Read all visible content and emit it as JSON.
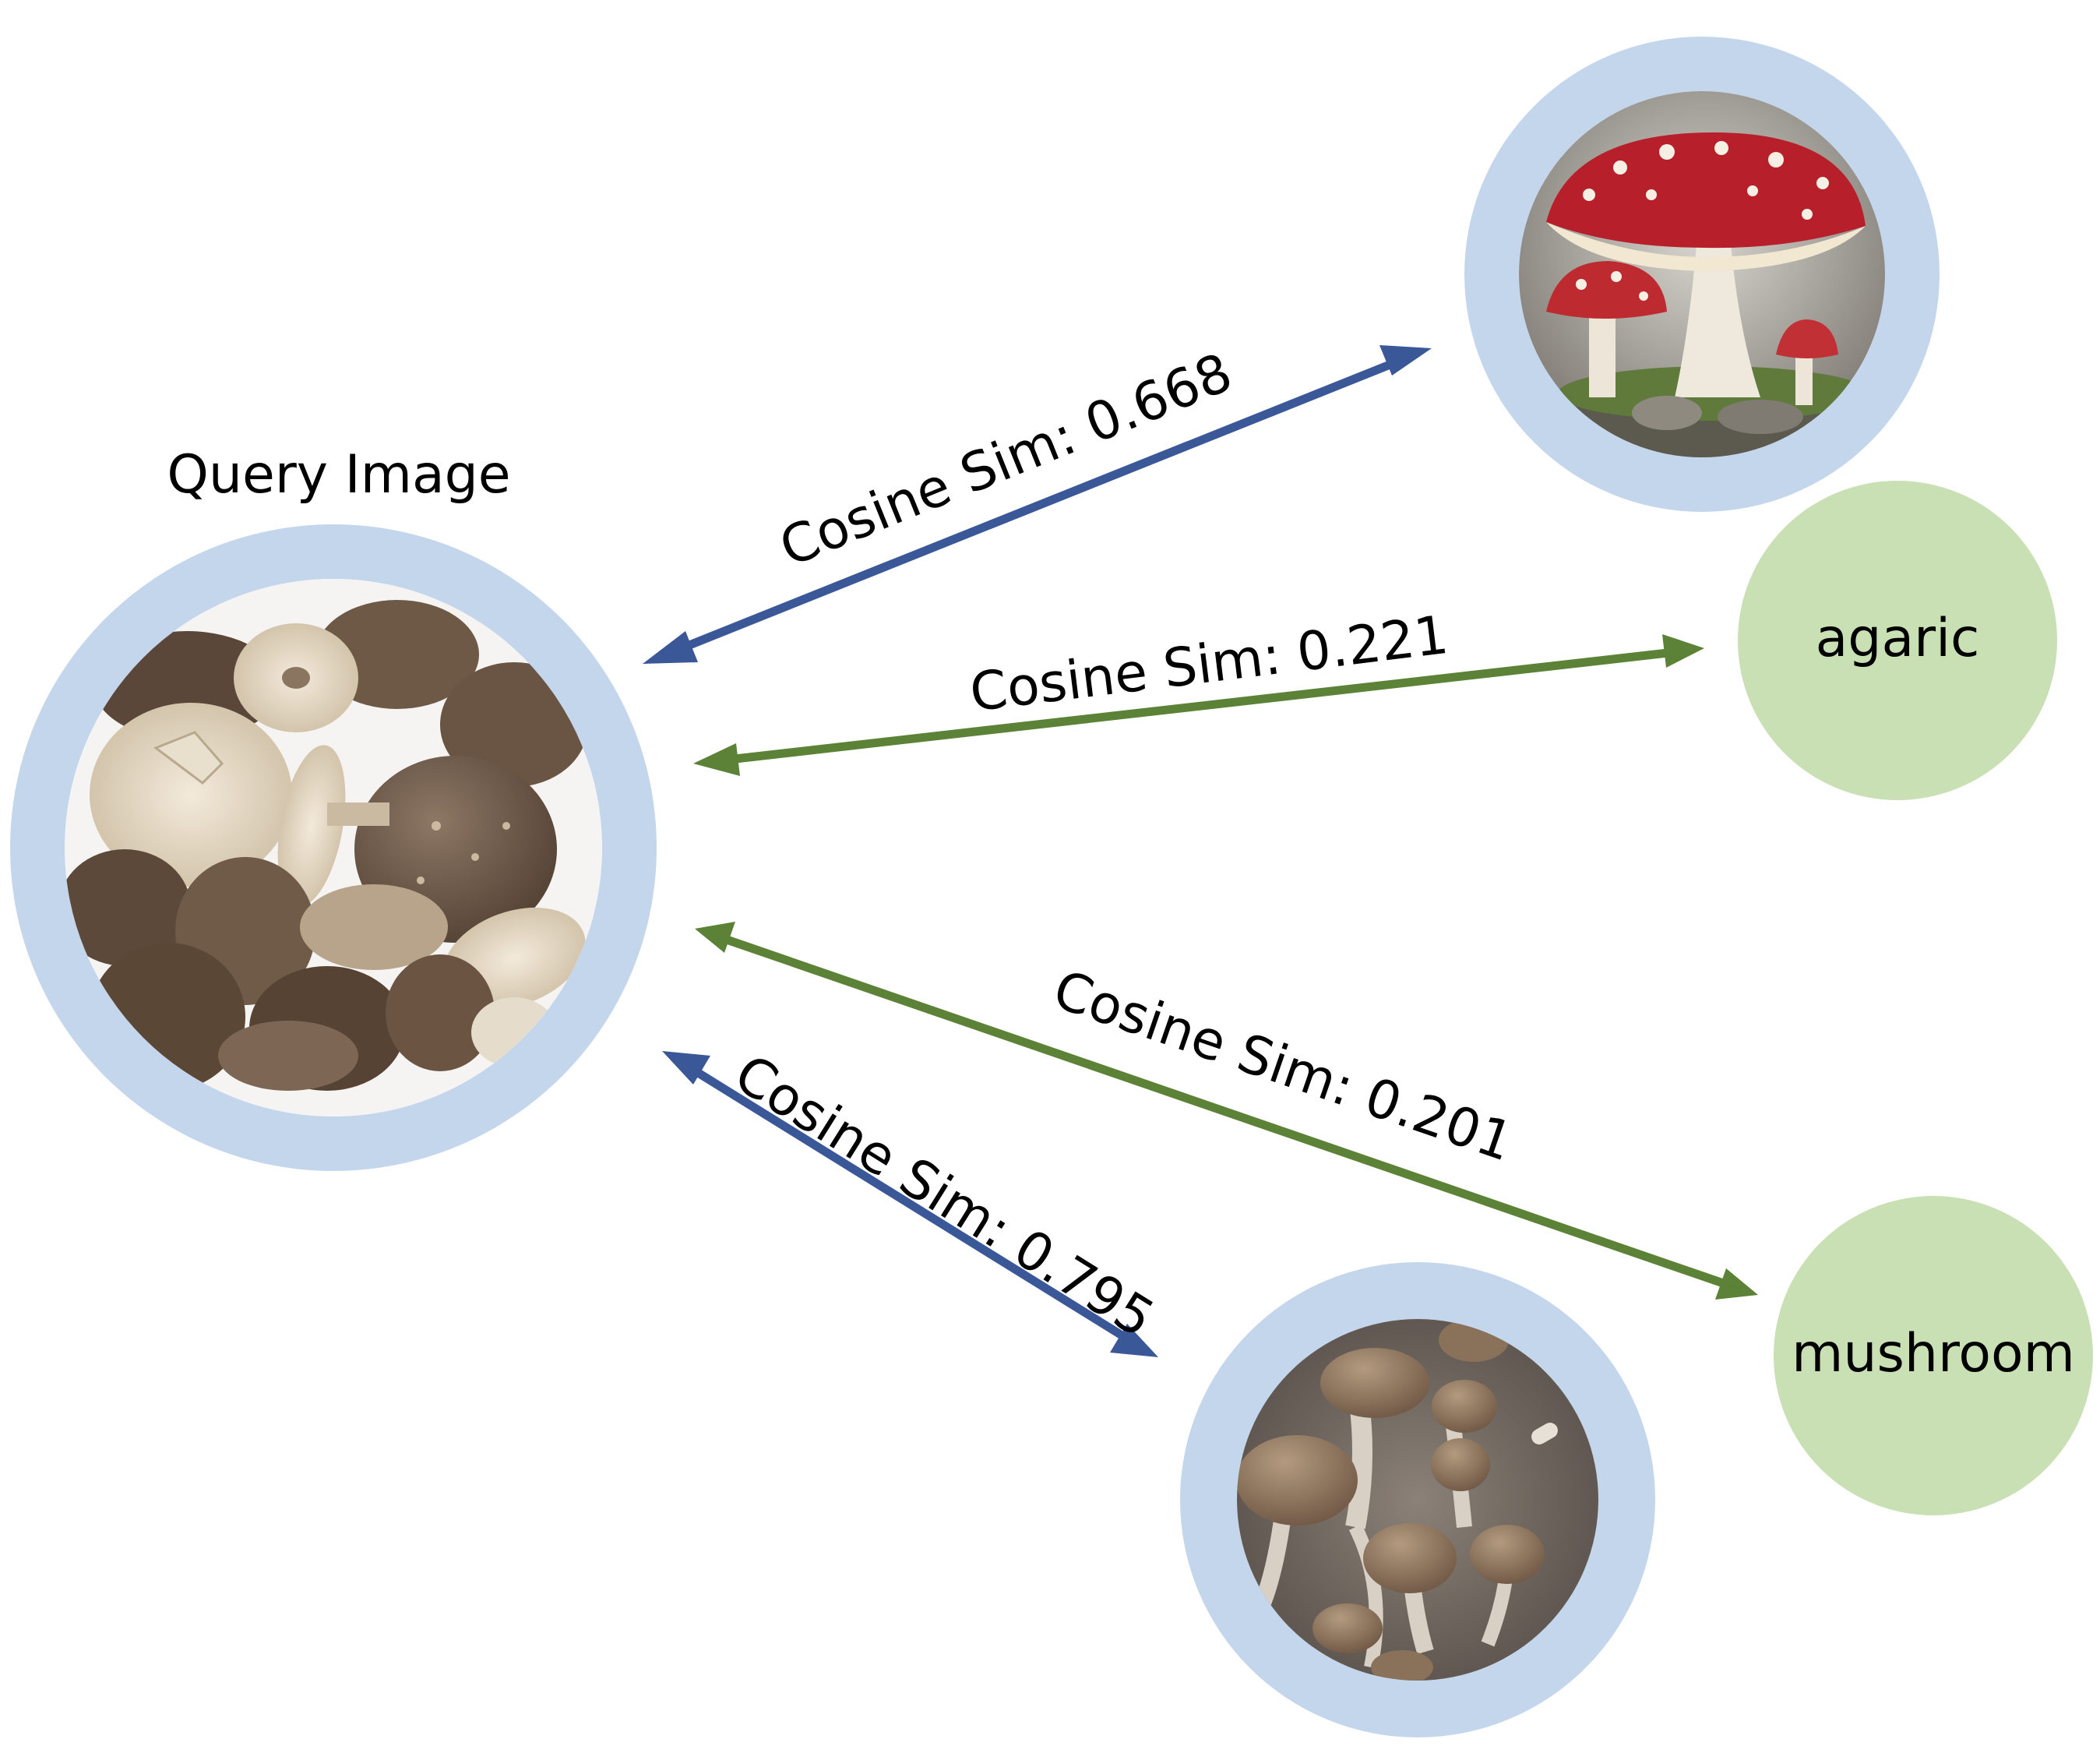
{
  "query_label": "Query Image",
  "images": {
    "query": "pile of shiitake mushrooms",
    "fly_agaric": "red fly agaric mushrooms",
    "brown_mushrooms": "brown button mushrooms"
  },
  "text_nodes": {
    "agaric": "agaric",
    "mushroom": "mushroom"
  },
  "edges": {
    "fly_agaric": {
      "label": "Cosine Sim: 0.668",
      "value": 0.668
    },
    "agaric": {
      "label": "Cosine Sim: 0.221",
      "value": 0.221
    },
    "mushroom": {
      "label": "Cosine Sim: 0.201",
      "value": 0.201
    },
    "brown_mushrooms": {
      "label": "Cosine Sim: 0.795",
      "value": 0.795
    }
  },
  "colors": {
    "ring": "#c3d6ec",
    "text_node": "#c9e0b4",
    "image_edge": "#3a5797",
    "text_edge": "#5b8236"
  }
}
